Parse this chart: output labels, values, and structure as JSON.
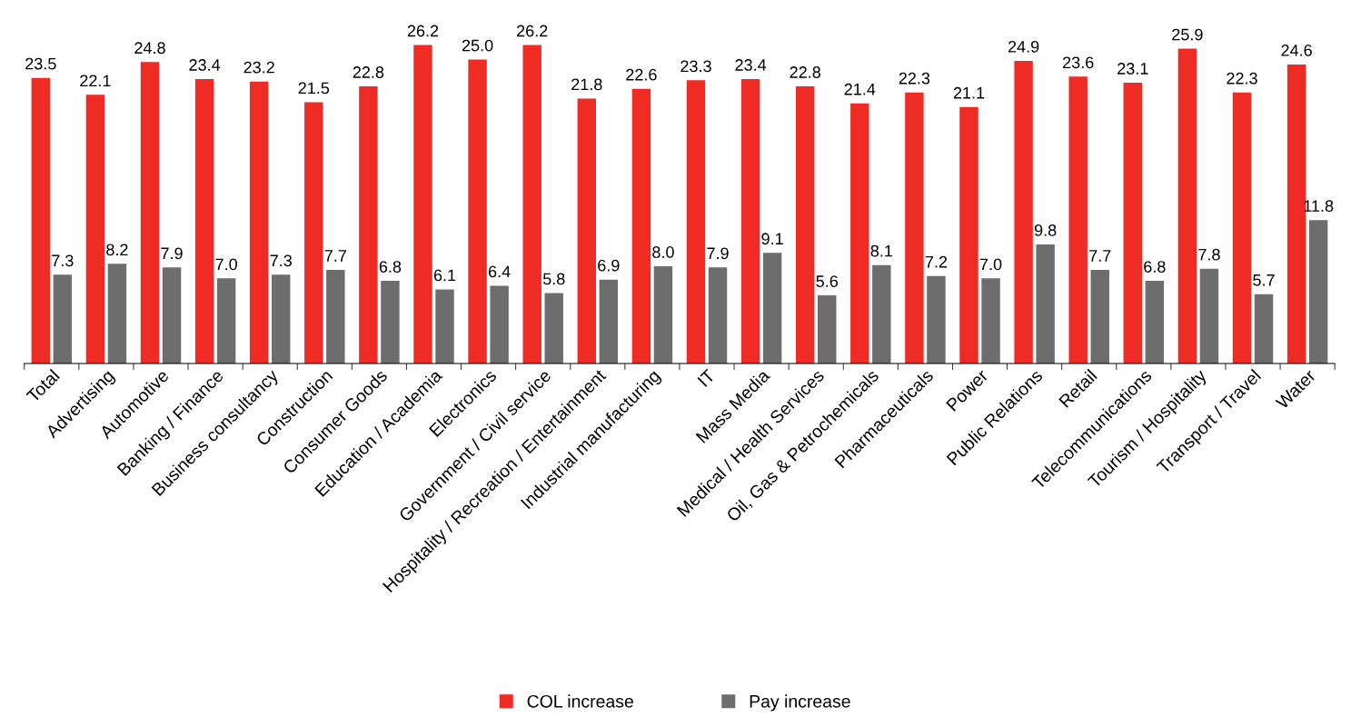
{
  "chart_data": {
    "type": "bar",
    "categories": [
      "Total",
      "Advertising",
      "Automotive",
      "Banking / Finance",
      "Business consultancy",
      "Construction",
      "Consumer Goods",
      "Education / Academia",
      "Electronics",
      "Government / Civil service",
      "Hospitality / Recreation / Entertainment",
      "Industrial manufacturing",
      "IT",
      "Mass Media",
      "Medical / Health Services",
      "Oil, Gas & Petrochemicals",
      "Pharmaceuticals",
      "Power",
      "Public Relations",
      "Retail",
      "Telecommunications",
      "Tourism / Hospitality",
      "Transport / Travel",
      "Water"
    ],
    "series": [
      {
        "name": "COL increase",
        "color": "#ee2b24",
        "values": [
          23.5,
          22.1,
          24.8,
          23.4,
          23.2,
          21.5,
          22.8,
          26.2,
          25.0,
          26.2,
          21.8,
          22.6,
          23.3,
          23.4,
          22.8,
          21.4,
          22.3,
          21.1,
          24.9,
          23.6,
          23.1,
          25.9,
          22.3,
          24.6
        ],
        "value_labels": [
          "23.5",
          "22.1",
          "24.8",
          "23.4",
          "23.2",
          "21.5",
          "22.8",
          "26.2",
          "25.0",
          "26.2",
          "21.8",
          "22.6",
          "23.3",
          "23.4",
          "22.8",
          "21.4",
          "22.3",
          "21.1",
          "24.9",
          "23.6",
          "23.1",
          "25.9",
          "22.3",
          "24.6"
        ]
      },
      {
        "name": "Pay increase",
        "color": "#6d6d6d",
        "values": [
          7.3,
          8.2,
          7.9,
          7.0,
          7.3,
          7.7,
          6.8,
          6.1,
          6.4,
          5.8,
          6.9,
          8.0,
          7.9,
          9.1,
          5.6,
          8.1,
          7.2,
          7.0,
          9.8,
          7.7,
          6.8,
          7.8,
          5.7,
          11.8
        ],
        "value_labels": [
          "7.3",
          "8.2",
          "7.9",
          "7.0",
          "7.3",
          "7.7",
          "6.8",
          "6.1",
          "6.4",
          "5.8",
          "6.9",
          "8.0",
          "7.9",
          "9.1",
          "5.6",
          "8.1",
          "7.2",
          "7.0",
          "9.8",
          "7.7",
          "6.8",
          "7.8",
          "5.7",
          "11.8"
        ]
      }
    ],
    "legend": "bottom",
    "tick_labels": "x",
    "grid": false
  }
}
